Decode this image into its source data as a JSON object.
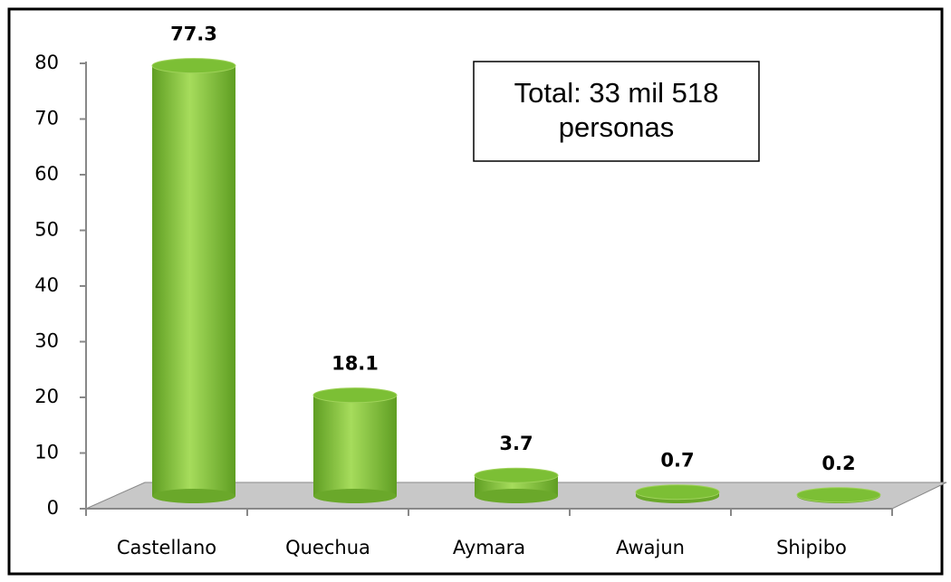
{
  "chart_data": {
    "type": "bar3d",
    "annotation": "Total: 33 mil 518 personas",
    "categories": [
      "Castellano",
      "Quechua",
      "Aymara",
      "Awajun",
      "Shipibo"
    ],
    "values": [
      77.3,
      18.1,
      3.7,
      0.7,
      0.2
    ],
    "color": "#7cbf35",
    "ylim": [
      0,
      80
    ],
    "yticks": [
      0,
      10,
      20,
      30,
      40,
      50,
      60,
      70,
      80
    ]
  }
}
